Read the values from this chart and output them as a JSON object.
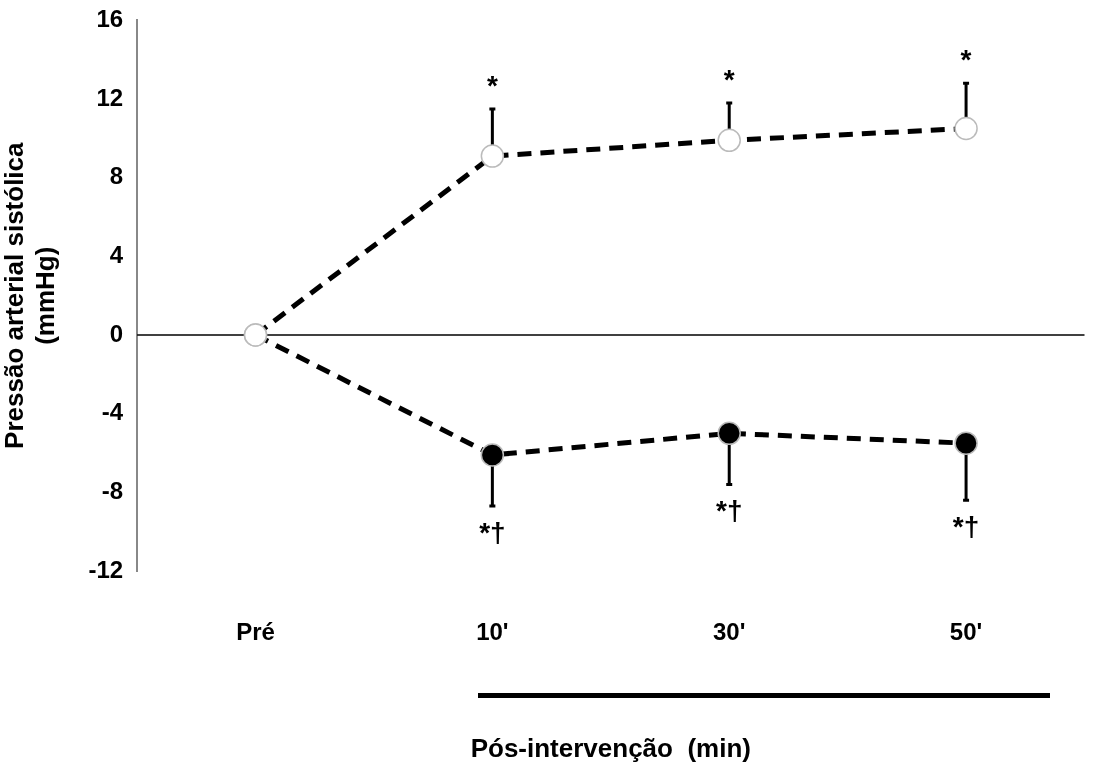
{
  "chart_data": {
    "type": "line",
    "ylabel": "Pressão arterial sistólica\n(mmHg)",
    "xlabel": "Pós-intervenção  (min)",
    "categories": [
      "Pré",
      "10'",
      "30'",
      "50'"
    ],
    "series": [
      {
        "color": "#ffffff",
        "values": [
          0,
          9.1,
          9.9,
          10.5
        ],
        "errors": [
          null,
          [
            9.1,
            11.5
          ],
          [
            9.9,
            11.8
          ],
          [
            10.5,
            12.8
          ]
        ]
      },
      {
        "color": "#000000",
        "values": [
          0,
          -6.1,
          -5.0,
          -5.5
        ],
        "errors": [
          null,
          [
            -8.7,
            -6.1
          ],
          [
            -7.6,
            -5.0
          ],
          [
            -8.4,
            -5.5
          ]
        ]
      }
    ],
    "ylim": [
      -12,
      16
    ],
    "yticks": [
      -12,
      -8,
      -4,
      0,
      4,
      8,
      12,
      16
    ],
    "grid": false,
    "legend": false,
    "marker": "circle",
    "line_style": "dashed",
    "ref_lines": [
      {
        "axis": "y",
        "value": 0
      }
    ],
    "annotations": [
      {
        "text": "*",
        "x": "10'",
        "y": 11.5
      },
      {
        "text": "*",
        "x": "30'",
        "y": 11.8
      },
      {
        "text": "*",
        "x": "50'",
        "y": 12.8
      },
      {
        "text": "*†",
        "x": "10'",
        "y": -8.7
      },
      {
        "text": "*†",
        "x": "30'",
        "y": -7.6
      },
      {
        "text": "*†",
        "x": "50'",
        "y": -8.4
      }
    ]
  }
}
